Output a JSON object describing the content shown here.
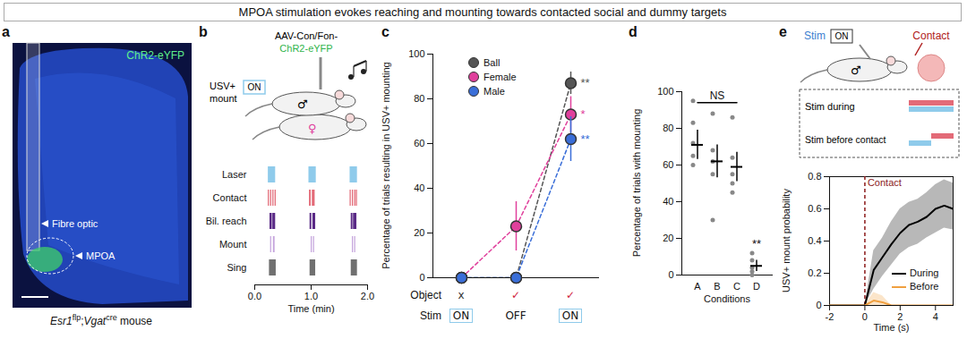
{
  "title": "MPOA stimulation evokes reaching and mounting towards contacted social and dummy targets",
  "letters": [
    "a",
    "b",
    "c",
    "d",
    "e"
  ],
  "symbols": {
    "male": "♂",
    "female": "♀"
  },
  "panel_a": {
    "label": "ChR2-eYFP",
    "fibre_label": "Fibre optic",
    "region_label": "MPOA",
    "caption": [
      {
        "text": "Esr1",
        "style": "italic"
      },
      {
        "text": "flp",
        "style": "sup"
      },
      {
        "text": ";",
        "style": "normal"
      },
      {
        "text": "Vgat",
        "style": "italic"
      },
      {
        "text": "cre",
        "style": "sup"
      },
      {
        "text": " mouse",
        "style": "normal"
      }
    ]
  },
  "panel_b": {
    "virus": "AAV-Con/Fon-",
    "opsin": "ChR2-eYFP",
    "behaviour": [
      "USV+",
      "mount"
    ],
    "stim_label": "ON"
  },
  "panel_e": {
    "stim": "Stim",
    "stim_label": "ON",
    "contact": "Contact",
    "conditions": [
      "Stim during",
      "Stim before contact"
    ]
  },
  "chart_data": [
    {
      "type": "raster",
      "xlabel": "Time (min)",
      "xlim": [
        0,
        2
      ],
      "xticks": [
        0,
        1,
        2
      ],
      "series": [
        {
          "name": "Laser",
          "color": "#8fcbeb",
          "intervals": [
            [
              0.24,
              0.37
            ],
            [
              0.96,
              1.09
            ],
            [
              1.69,
              1.82
            ]
          ]
        },
        {
          "name": "Contact",
          "color": "#e36b78",
          "intervals": [
            [
              0.24,
              0.26
            ],
            [
              0.28,
              0.3
            ],
            [
              0.32,
              0.34
            ],
            [
              0.36,
              0.38
            ],
            [
              0.97,
              1.0
            ],
            [
              1.02,
              1.07
            ],
            [
              1.69,
              1.71
            ],
            [
              1.73,
              1.75
            ],
            [
              1.77,
              1.79
            ],
            [
              1.8,
              1.82
            ]
          ]
        },
        {
          "name": "Bil. reach",
          "color": "#5a2a86",
          "intervals": [
            [
              0.27,
              0.31
            ],
            [
              0.32,
              0.37
            ],
            [
              0.98,
              1.01
            ],
            [
              1.03,
              1.08
            ],
            [
              1.71,
              1.74
            ],
            [
              1.75,
              1.81
            ]
          ]
        },
        {
          "name": "Mount",
          "color": "#c6a6dd",
          "intervals": [
            [
              0.28,
              0.3
            ],
            [
              0.33,
              0.36
            ],
            [
              1.0,
              1.02
            ],
            [
              1.04,
              1.06
            ],
            [
              1.73,
              1.75
            ],
            [
              1.77,
              1.79
            ]
          ]
        },
        {
          "name": "Sing",
          "color": "#707070",
          "intervals": [
            [
              0.26,
              0.38
            ],
            [
              0.98,
              1.08
            ],
            [
              1.71,
              1.82
            ]
          ]
        }
      ]
    },
    {
      "type": "line",
      "ylabel": "Percentage of trials resulting in USV+ mounting",
      "ylim": [
        0,
        100
      ],
      "yticks": [
        0,
        20,
        40,
        60,
        80,
        100
      ],
      "categories": [
        null,
        null,
        null
      ],
      "row_labels": [
        {
          "name": "Object",
          "values": [
            "x",
            "✓",
            "✓"
          ],
          "colors": [
            "#333333",
            "#d0203a",
            "#d0203a"
          ]
        },
        {
          "name": "Stim",
          "values": [
            "ON",
            "OFF",
            "ON"
          ]
        }
      ],
      "legend": "top-left",
      "line_style": "dashed",
      "marker": "circle",
      "series": [
        {
          "name": "Ball",
          "color": "#555555",
          "values": [
            0,
            0,
            87
          ],
          "errors": [
            0,
            0,
            5
          ],
          "significance": "**"
        },
        {
          "name": "Female",
          "color": "#e0409c",
          "values": [
            0,
            23,
            73
          ],
          "errors": [
            0,
            11,
            8
          ],
          "significance": "*"
        },
        {
          "name": "Male",
          "color": "#3a6ed8",
          "values": [
            0,
            0,
            62
          ],
          "errors": [
            0,
            0,
            10
          ],
          "significance": "**"
        }
      ]
    },
    {
      "type": "dot",
      "ylabel": "Percentage of trials with mounting",
      "xlabel": "Conditions",
      "categories": [
        "A",
        "B",
        "C",
        "D"
      ],
      "ylim": [
        0,
        100
      ],
      "yticks": [
        0,
        20,
        40,
        60,
        80,
        100
      ],
      "values": [
        71,
        62,
        59,
        5
      ],
      "errors": [
        8,
        9,
        8,
        3
      ],
      "points": [
        [
          95,
          83,
          72,
          65,
          60
        ],
        [
          88,
          68,
          62,
          55,
          30
        ],
        [
          86,
          64,
          55,
          50,
          45
        ],
        [
          12,
          8,
          4,
          2,
          0
        ]
      ],
      "color": "#888888",
      "annotations": [
        {
          "from": "A",
          "to": "C",
          "y": 94,
          "label": "NS"
        },
        {
          "at": "D",
          "y": 17,
          "label": "**"
        }
      ]
    },
    {
      "type": "line",
      "xlabel": "Time (s)",
      "ylabel": "USV+ mount probability",
      "xlim": [
        -2,
        5
      ],
      "xticks": [
        -2,
        0,
        2,
        4
      ],
      "ylim": [
        0,
        0.8
      ],
      "yticks": [
        0,
        0.2,
        0.4,
        0.6,
        0.8
      ],
      "x": [
        -2,
        -1.5,
        -1,
        -0.5,
        0,
        0.5,
        1,
        1.5,
        2,
        2.5,
        3,
        3.5,
        4,
        4.5,
        5
      ],
      "legend": "right",
      "annotations": [
        {
          "x": 0,
          "label": "Contact",
          "color": "#8b1a1a",
          "line_style": "dashed"
        }
      ],
      "series": [
        {
          "name": "During",
          "color": "#000000",
          "values": [
            0,
            0,
            0,
            0,
            0,
            0.22,
            0.3,
            0.38,
            0.45,
            0.5,
            0.52,
            0.55,
            0.6,
            0.62,
            0.6
          ],
          "lower": [
            0,
            0,
            0,
            0,
            0,
            0.1,
            0.18,
            0.25,
            0.32,
            0.36,
            0.38,
            0.42,
            0.45,
            0.48,
            0.47
          ],
          "upper": [
            0,
            0,
            0,
            0,
            0,
            0.34,
            0.42,
            0.52,
            0.6,
            0.64,
            0.66,
            0.7,
            0.75,
            0.78,
            0.76
          ]
        },
        {
          "name": "Before",
          "color": "#f0a040",
          "values": [
            0,
            0,
            0,
            0,
            0,
            0.03,
            0.02,
            0,
            0,
            0,
            0,
            0,
            0,
            0,
            0
          ],
          "lower": [
            0,
            0,
            0,
            0,
            0,
            0,
            0,
            0,
            0,
            0,
            0,
            0,
            0,
            0,
            0
          ],
          "upper": [
            0,
            0,
            0,
            0,
            0,
            0.08,
            0.06,
            0,
            0,
            0,
            0,
            0,
            0,
            0,
            0
          ]
        }
      ]
    }
  ]
}
